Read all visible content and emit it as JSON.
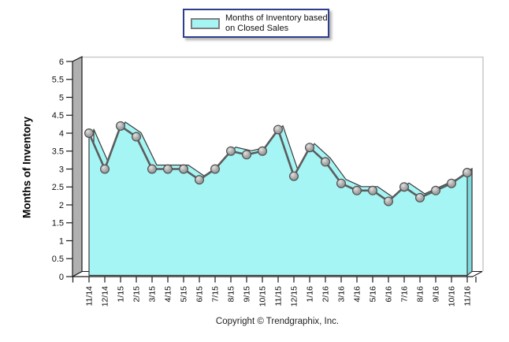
{
  "legend": {
    "line1": "Months of Inventory based",
    "line2": "on Closed Sales"
  },
  "footer": {
    "copyright": "Copyright © Trendgraphix, Inc."
  },
  "colors": {
    "area_fill": "#a6f5f5",
    "area_side": "#7fd9dc",
    "area_outline": "#3a3a3a",
    "line": "#5c5c5c",
    "marker_fill": "#ababab",
    "marker_stroke": "#4f4f4f",
    "wall_fill": "#b0b0b0",
    "floor_fill": "#ffffff",
    "axis_outline": "#1a1a1a",
    "frame": "#c9c9c9",
    "legend_border": "#2c3e8c",
    "tick_text": "#111111"
  },
  "chart_data": {
    "type": "area",
    "title": "",
    "legend_entries": [
      "Months of Inventory based on Closed Sales"
    ],
    "legend_position": "top-center",
    "xlabel": "",
    "ylabel": "Months of Inventory",
    "ylim": [
      0,
      6
    ],
    "ytick_step": 0.5,
    "y_tick_labels": [
      "0",
      "0.5",
      "1",
      "1.5",
      "2",
      "2.5",
      "3",
      "3.5",
      "4",
      "4.5",
      "5",
      "5.5",
      "6"
    ],
    "grid": false,
    "style": "3d-area-with-markers",
    "categories": [
      "11/14",
      "12/14",
      "1/15",
      "2/15",
      "3/15",
      "4/15",
      "5/15",
      "6/15",
      "7/15",
      "8/15",
      "9/15",
      "10/15",
      "11/15",
      "12/15",
      "1/16",
      "2/16",
      "3/16",
      "4/16",
      "5/16",
      "6/16",
      "7/16",
      "8/16",
      "9/16",
      "10/16",
      "11/16"
    ],
    "values": [
      4.0,
      3.0,
      4.2,
      3.9,
      3.0,
      3.0,
      3.0,
      2.7,
      3.0,
      3.5,
      3.4,
      3.5,
      4.1,
      2.8,
      3.6,
      3.2,
      2.6,
      2.4,
      2.4,
      2.1,
      2.5,
      2.2,
      2.4,
      2.6,
      2.9
    ]
  }
}
